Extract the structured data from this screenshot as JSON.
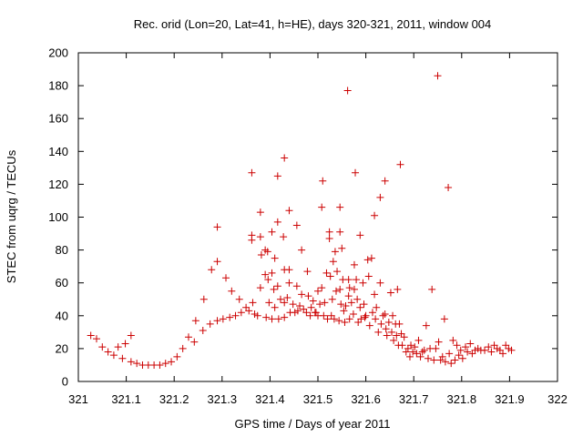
{
  "chart_data": {
    "type": "scatter",
    "title": "Rec. orid (Lon=20, Lat=41, h=HE), days 320-321, 2011, window 004",
    "xlabel": "GPS time / Days of year 2011",
    "ylabel": "STEC from uqrg / TECUs",
    "xlim": [
      321,
      322
    ],
    "ylim": [
      0,
      200
    ],
    "xticks": [
      321,
      321.1,
      321.2,
      321.3,
      321.4,
      321.5,
      321.6,
      321.7,
      321.8,
      321.9,
      322
    ],
    "xtick_labels": [
      "321",
      "321.1",
      "321.2",
      "321.3",
      "321.4",
      "321.5",
      "321.6",
      "321.7",
      "321.8",
      "321.9",
      "322"
    ],
    "yticks": [
      0,
      20,
      40,
      60,
      80,
      100,
      120,
      140,
      160,
      180,
      200
    ],
    "ytick_labels": [
      "0",
      "20",
      "40",
      "60",
      "80",
      "100",
      "120",
      "140",
      "160",
      "180",
      "200"
    ],
    "marker": "+",
    "color": "#cc0000",
    "series": [
      {
        "name": "STEC",
        "points": [
          [
            321.026,
            28
          ],
          [
            321.038,
            26
          ],
          [
            321.05,
            21
          ],
          [
            321.062,
            18
          ],
          [
            321.074,
            16
          ],
          [
            321.083,
            21
          ],
          [
            321.092,
            14
          ],
          [
            321.098,
            23
          ],
          [
            321.11,
            28
          ],
          [
            321.11,
            12
          ],
          [
            321.122,
            11
          ],
          [
            321.134,
            10
          ],
          [
            321.146,
            10
          ],
          [
            321.158,
            10
          ],
          [
            321.17,
            10
          ],
          [
            321.182,
            11
          ],
          [
            321.194,
            12
          ],
          [
            321.206,
            15
          ],
          [
            321.218,
            20
          ],
          [
            321.23,
            27
          ],
          [
            321.242,
            24
          ],
          [
            321.245,
            37
          ],
          [
            321.26,
            31
          ],
          [
            321.262,
            50
          ],
          [
            321.275,
            35
          ],
          [
            321.278,
            68
          ],
          [
            321.29,
            37
          ],
          [
            321.29,
            73
          ],
          [
            321.29,
            94
          ],
          [
            321.302,
            38
          ],
          [
            321.308,
            63
          ],
          [
            321.316,
            39
          ],
          [
            321.32,
            55
          ],
          [
            321.328,
            40
          ],
          [
            321.336,
            50
          ],
          [
            321.34,
            42
          ],
          [
            321.35,
            45
          ],
          [
            321.356,
            43
          ],
          [
            321.362,
            127
          ],
          [
            321.362,
            89
          ],
          [
            321.362,
            86
          ],
          [
            321.364,
            48
          ],
          [
            321.368,
            41
          ],
          [
            321.374,
            40
          ],
          [
            321.38,
            103
          ],
          [
            321.38,
            88
          ],
          [
            321.38,
            57
          ],
          [
            321.382,
            77
          ],
          [
            321.39,
            80
          ],
          [
            321.39,
            65
          ],
          [
            321.392,
            39
          ],
          [
            321.395,
            79
          ],
          [
            321.396,
            62
          ],
          [
            321.398,
            48
          ],
          [
            321.404,
            91
          ],
          [
            321.404,
            66
          ],
          [
            321.404,
            38
          ],
          [
            321.408,
            56
          ],
          [
            321.41,
            75
          ],
          [
            321.41,
            45
          ],
          [
            321.416,
            125
          ],
          [
            321.416,
            97
          ],
          [
            321.416,
            58
          ],
          [
            321.418,
            38
          ],
          [
            321.422,
            50
          ],
          [
            321.428,
            88
          ],
          [
            321.43,
            136
          ],
          [
            321.43,
            68
          ],
          [
            321.43,
            48
          ],
          [
            321.43,
            39
          ],
          [
            321.436,
            51
          ],
          [
            321.44,
            104
          ],
          [
            321.44,
            68
          ],
          [
            321.44,
            60
          ],
          [
            321.442,
            42
          ],
          [
            321.448,
            47
          ],
          [
            321.452,
            42
          ],
          [
            321.456,
            95
          ],
          [
            321.456,
            58
          ],
          [
            321.458,
            43
          ],
          [
            321.462,
            46
          ],
          [
            321.466,
            80
          ],
          [
            321.466,
            53
          ],
          [
            321.47,
            44
          ],
          [
            321.476,
            42
          ],
          [
            321.478,
            67
          ],
          [
            321.48,
            52
          ],
          [
            321.484,
            40
          ],
          [
            321.486,
            45
          ],
          [
            321.49,
            49
          ],
          [
            321.494,
            42
          ],
          [
            321.496,
            42
          ],
          [
            321.5,
            55
          ],
          [
            321.5,
            40
          ],
          [
            321.504,
            47
          ],
          [
            321.508,
            106
          ],
          [
            321.508,
            57
          ],
          [
            321.51,
            122
          ],
          [
            321.512,
            40
          ],
          [
            321.514,
            48
          ],
          [
            321.518,
            66
          ],
          [
            321.52,
            38
          ],
          [
            321.524,
            87
          ],
          [
            321.524,
            91
          ],
          [
            321.526,
            64
          ],
          [
            321.528,
            40
          ],
          [
            321.53,
            50
          ],
          [
            321.532,
            73
          ],
          [
            321.534,
            38
          ],
          [
            321.536,
            79
          ],
          [
            321.538,
            55
          ],
          [
            321.54,
            67
          ],
          [
            321.544,
            37
          ],
          [
            321.546,
            106
          ],
          [
            321.546,
            91
          ],
          [
            321.546,
            56
          ],
          [
            321.548,
            47
          ],
          [
            321.55,
            81
          ],
          [
            321.552,
            62
          ],
          [
            321.554,
            43
          ],
          [
            321.556,
            36
          ],
          [
            321.558,
            46
          ],
          [
            321.562,
            177
          ],
          [
            321.564,
            62
          ],
          [
            321.564,
            52
          ],
          [
            321.566,
            38
          ],
          [
            321.566,
            57
          ],
          [
            321.57,
            48
          ],
          [
            321.574,
            41
          ],
          [
            321.576,
            71
          ],
          [
            321.576,
            56
          ],
          [
            321.578,
            127
          ],
          [
            321.58,
            62
          ],
          [
            321.582,
            50
          ],
          [
            321.584,
            36
          ],
          [
            321.588,
            89
          ],
          [
            321.588,
            45
          ],
          [
            321.59,
            38
          ],
          [
            321.594,
            60
          ],
          [
            321.596,
            47
          ],
          [
            321.598,
            39
          ],
          [
            321.6,
            40
          ],
          [
            321.604,
            74
          ],
          [
            321.606,
            64
          ],
          [
            321.608,
            34
          ],
          [
            321.612,
            75
          ],
          [
            321.614,
            42
          ],
          [
            321.618,
            101
          ],
          [
            321.618,
            53
          ],
          [
            321.62,
            38
          ],
          [
            321.622,
            45
          ],
          [
            321.626,
            30
          ],
          [
            321.63,
            112
          ],
          [
            321.63,
            60
          ],
          [
            321.632,
            35
          ],
          [
            321.636,
            40
          ],
          [
            321.64,
            122
          ],
          [
            321.64,
            41
          ],
          [
            321.642,
            32
          ],
          [
            321.644,
            28
          ],
          [
            321.648,
            36
          ],
          [
            321.652,
            54
          ],
          [
            321.654,
            30
          ],
          [
            321.656,
            40
          ],
          [
            321.658,
            25
          ],
          [
            321.662,
            35
          ],
          [
            321.664,
            28
          ],
          [
            321.666,
            56
          ],
          [
            321.668,
            22
          ],
          [
            321.67,
            35
          ],
          [
            321.672,
            132
          ],
          [
            321.674,
            29
          ],
          [
            321.676,
            22
          ],
          [
            321.68,
            27
          ],
          [
            321.684,
            18
          ],
          [
            321.688,
            20
          ],
          [
            321.692,
            15
          ],
          [
            321.694,
            22
          ],
          [
            321.698,
            18
          ],
          [
            321.702,
            21
          ],
          [
            321.706,
            17
          ],
          [
            321.71,
            25
          ],
          [
            321.714,
            15
          ],
          [
            321.718,
            18
          ],
          [
            321.722,
            19
          ],
          [
            321.726,
            34
          ],
          [
            321.73,
            14
          ],
          [
            321.734,
            20
          ],
          [
            321.738,
            56
          ],
          [
            321.742,
            13
          ],
          [
            321.746,
            20
          ],
          [
            321.75,
            186
          ],
          [
            321.752,
            24
          ],
          [
            321.756,
            13
          ],
          [
            321.76,
            15
          ],
          [
            321.764,
            38
          ],
          [
            321.766,
            12
          ],
          [
            321.772,
            118
          ],
          [
            321.774,
            17
          ],
          [
            321.778,
            11
          ],
          [
            321.782,
            25
          ],
          [
            321.786,
            13
          ],
          [
            321.79,
            22
          ],
          [
            321.794,
            16
          ],
          [
            321.798,
            19
          ],
          [
            321.802,
            14
          ],
          [
            321.808,
            21
          ],
          [
            321.812,
            18
          ],
          [
            321.818,
            23
          ],
          [
            321.822,
            17
          ],
          [
            321.828,
            19
          ],
          [
            321.834,
            20
          ],
          [
            321.84,
            19
          ],
          [
            321.848,
            19
          ],
          [
            321.856,
            21
          ],
          [
            321.862,
            18
          ],
          [
            321.868,
            22
          ],
          [
            321.874,
            20
          ],
          [
            321.88,
            19
          ],
          [
            321.886,
            17
          ],
          [
            321.892,
            22
          ],
          [
            321.898,
            20
          ],
          [
            321.904,
            19
          ]
        ]
      }
    ]
  }
}
